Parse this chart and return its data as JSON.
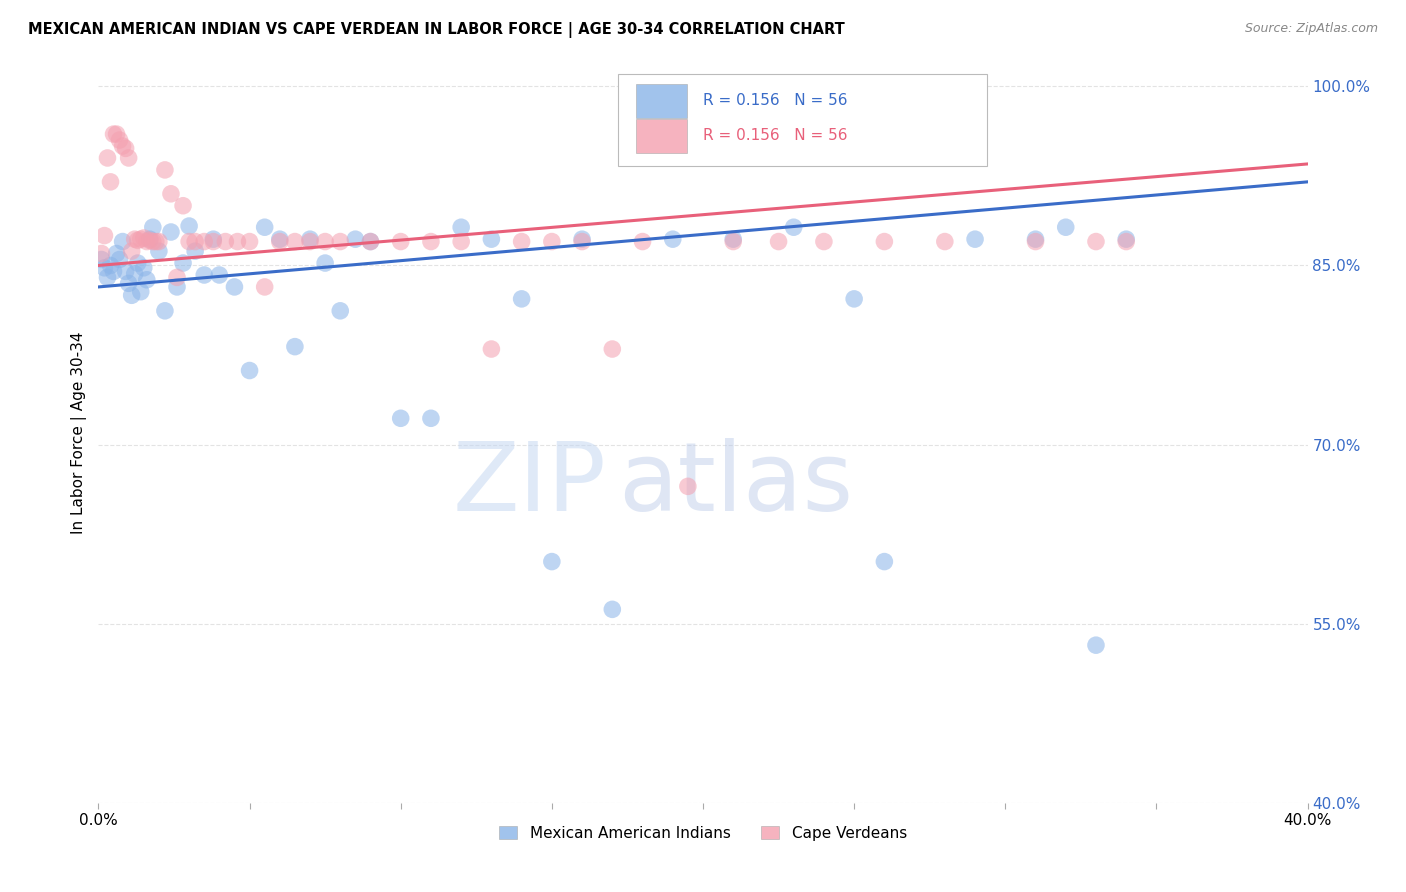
{
  "title": "MEXICAN AMERICAN INDIAN VS CAPE VERDEAN IN LABOR FORCE | AGE 30-34 CORRELATION CHART",
  "source": "Source: ZipAtlas.com",
  "ylabel": "In Labor Force | Age 30-34",
  "x_min": 0.0,
  "x_max": 0.4,
  "y_min": 0.4,
  "y_max": 1.02,
  "y_ticks": [
    0.4,
    0.55,
    0.7,
    0.85,
    1.0
  ],
  "grid_color": "#d8d8d8",
  "background_color": "#ffffff",
  "blue_color": "#8ab4e8",
  "pink_color": "#f4a0b0",
  "blue_line_color": "#3a6cc8",
  "pink_line_color": "#e8607a",
  "R_blue": 0.156,
  "N_blue": 56,
  "R_pink": 0.156,
  "N_pink": 56,
  "legend_label_blue": "Mexican American Indians",
  "legend_label_pink": "Cape Verdeans",
  "watermark_zip": "ZIP",
  "watermark_atlas": "atlas",
  "blue_x": [
    0.001,
    0.002,
    0.003,
    0.004,
    0.005,
    0.006,
    0.007,
    0.008,
    0.009,
    0.01,
    0.011,
    0.012,
    0.013,
    0.014,
    0.015,
    0.016,
    0.017,
    0.018,
    0.02,
    0.022,
    0.024,
    0.026,
    0.028,
    0.03,
    0.032,
    0.035,
    0.038,
    0.04,
    0.045,
    0.05,
    0.055,
    0.06,
    0.065,
    0.07,
    0.075,
    0.08,
    0.085,
    0.09,
    0.1,
    0.11,
    0.12,
    0.13,
    0.14,
    0.15,
    0.16,
    0.17,
    0.19,
    0.21,
    0.23,
    0.25,
    0.26,
    0.29,
    0.31,
    0.32,
    0.33,
    0.34
  ],
  "blue_y": [
    0.855,
    0.848,
    0.84,
    0.85,
    0.845,
    0.86,
    0.855,
    0.87,
    0.845,
    0.835,
    0.825,
    0.843,
    0.852,
    0.828,
    0.848,
    0.838,
    0.872,
    0.882,
    0.862,
    0.812,
    0.878,
    0.832,
    0.852,
    0.883,
    0.862,
    0.842,
    0.872,
    0.842,
    0.832,
    0.762,
    0.882,
    0.872,
    0.782,
    0.872,
    0.852,
    0.812,
    0.872,
    0.87,
    0.722,
    0.722,
    0.882,
    0.872,
    0.822,
    0.602,
    0.872,
    0.562,
    0.872,
    0.872,
    0.882,
    0.822,
    0.602,
    0.872,
    0.872,
    0.882,
    0.532,
    0.872
  ],
  "pink_x": [
    0.001,
    0.002,
    0.003,
    0.004,
    0.005,
    0.006,
    0.007,
    0.008,
    0.009,
    0.01,
    0.011,
    0.012,
    0.013,
    0.014,
    0.015,
    0.016,
    0.017,
    0.018,
    0.019,
    0.02,
    0.022,
    0.024,
    0.026,
    0.028,
    0.03,
    0.032,
    0.035,
    0.038,
    0.042,
    0.046,
    0.05,
    0.055,
    0.06,
    0.065,
    0.07,
    0.075,
    0.08,
    0.09,
    0.1,
    0.11,
    0.12,
    0.13,
    0.14,
    0.15,
    0.16,
    0.17,
    0.18,
    0.195,
    0.21,
    0.225,
    0.24,
    0.26,
    0.28,
    0.31,
    0.33,
    0.34
  ],
  "pink_y": [
    0.86,
    0.875,
    0.94,
    0.92,
    0.96,
    0.96,
    0.955,
    0.95,
    0.948,
    0.94,
    0.862,
    0.872,
    0.871,
    0.872,
    0.873,
    0.87,
    0.871,
    0.87,
    0.87,
    0.87,
    0.93,
    0.91,
    0.84,
    0.9,
    0.87,
    0.87,
    0.87,
    0.87,
    0.87,
    0.87,
    0.87,
    0.832,
    0.87,
    0.87,
    0.87,
    0.87,
    0.87,
    0.87,
    0.87,
    0.87,
    0.87,
    0.78,
    0.87,
    0.87,
    0.87,
    0.78,
    0.87,
    0.665,
    0.87,
    0.87,
    0.87,
    0.87,
    0.87,
    0.87,
    0.87,
    0.87
  ]
}
